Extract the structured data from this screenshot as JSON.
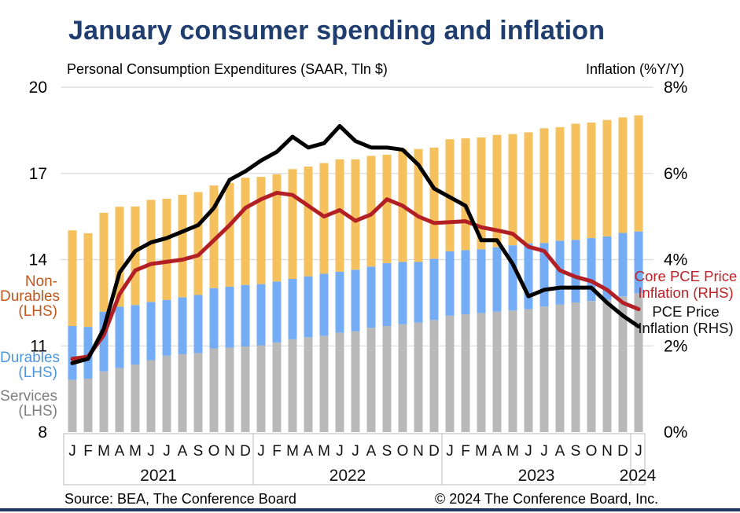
{
  "title": "January consumer spending and inflation",
  "subtitle_left": "Personal Consumption Expenditures (SAAR, Tln $)",
  "subtitle_right": "Inflation (%Y/Y)",
  "side_labels": {
    "non_durables": "Non-\nDurables\n(LHS)",
    "durables": "Durables\n(LHS)",
    "services": "Services\n(LHS)",
    "core_pce": "Core PCE Price\nInflation (RHS)",
    "pce": "PCE Price\nInflation (RHS)"
  },
  "footer": {
    "source": "Source: BEA, The Conference Board",
    "copyright": "© 2024 The Conference Board, Inc."
  },
  "colors": {
    "title": "#1F3D6E",
    "bottom_bar": "#1F3864",
    "grid": "#DBDBDB",
    "axis_box": "#C6C6C6",
    "tick_text": "#111111",
    "services_bar": "#B9B9B9",
    "durables_bar": "#74ADF5",
    "non_durables_bar": "#F5C05E",
    "pce_line": "#000000",
    "core_pce_line": "#B22026"
  },
  "chart_data": {
    "type": "combo (stacked bar + line)",
    "title": "January consumer spending and inflation",
    "left_axis": {
      "label": "Personal Consumption Expenditures (SAAR, Tln $)",
      "ticks": [
        "20",
        "17",
        "14",
        "11",
        "8"
      ],
      "tick_values": [
        20,
        17,
        14,
        11,
        8
      ],
      "range": [
        8,
        20
      ]
    },
    "right_axis": {
      "label": "Inflation (%Y/Y)",
      "ticks": [
        "8%",
        "6%",
        "4%",
        "2%",
        "0%"
      ],
      "tick_values": [
        8,
        6,
        4,
        2,
        0
      ],
      "range": [
        0,
        8
      ]
    },
    "grid": "horizontal gridlines on",
    "legend_position": "labels beside plot (left for bars, right for lines)",
    "months": [
      "J",
      "F",
      "M",
      "A",
      "M",
      "J",
      "J",
      "A",
      "S",
      "O",
      "N",
      "D",
      "J",
      "F",
      "M",
      "A",
      "M",
      "J",
      "J",
      "A",
      "S",
      "O",
      "N",
      "D",
      "J",
      "F",
      "M",
      "A",
      "M",
      "J",
      "J",
      "A",
      "S",
      "O",
      "N",
      "D",
      "J"
    ],
    "years": [
      {
        "label": "2021",
        "count": 12
      },
      {
        "label": "2022",
        "count": 12
      },
      {
        "label": "2023",
        "count": 12
      },
      {
        "label": "2024",
        "count": 1
      }
    ],
    "bar_series": [
      {
        "name": "Services (LHS)",
        "stack_order": 1,
        "color": "#B9B9B9",
        "values": [
          9.82,
          9.86,
          10.11,
          10.23,
          10.35,
          10.5,
          10.66,
          10.71,
          10.75,
          10.91,
          10.94,
          10.98,
          11.02,
          11.12,
          11.23,
          11.3,
          11.35,
          11.46,
          11.51,
          11.63,
          11.69,
          11.75,
          11.81,
          11.9,
          12.05,
          12.1,
          12.14,
          12.19,
          12.23,
          12.28,
          12.37,
          12.44,
          12.51,
          12.56,
          12.6,
          12.72,
          12.83
        ]
      },
      {
        "name": "Durables (LHS)",
        "stack_order": 2,
        "color": "#74ADF5",
        "values": [
          1.87,
          1.8,
          2.08,
          2.13,
          2.07,
          2.03,
          1.94,
          1.98,
          2.02,
          2.1,
          2.12,
          2.14,
          2.13,
          2.12,
          2.1,
          2.12,
          2.16,
          2.12,
          2.14,
          2.13,
          2.19,
          2.17,
          2.11,
          2.13,
          2.24,
          2.23,
          2.22,
          2.24,
          2.27,
          2.29,
          2.21,
          2.22,
          2.18,
          2.19,
          2.21,
          2.21,
          2.15
        ]
      },
      {
        "name": "Non-Durables (LHS)",
        "stack_order": 3,
        "color": "#F5C05E",
        "values": [
          3.33,
          3.26,
          3.44,
          3.48,
          3.43,
          3.55,
          3.52,
          3.57,
          3.58,
          3.57,
          3.61,
          3.73,
          3.73,
          3.73,
          3.82,
          3.82,
          3.85,
          3.91,
          3.84,
          3.85,
          3.77,
          3.93,
          3.93,
          3.87,
          3.9,
          3.89,
          3.89,
          3.91,
          3.87,
          3.86,
          3.99,
          3.95,
          4.04,
          4.02,
          4.05,
          4.02,
          4.04
        ]
      }
    ],
    "line_series": [
      {
        "name": "Core PCE Price Inflation (RHS)",
        "axis": "right",
        "color": "#B22026",
        "values": [
          1.7,
          1.75,
          2.25,
          3.2,
          3.75,
          3.9,
          3.95,
          4.0,
          4.1,
          4.45,
          4.8,
          5.2,
          5.4,
          5.55,
          5.5,
          5.25,
          5.0,
          5.15,
          4.9,
          5.05,
          5.4,
          5.25,
          5.0,
          4.85,
          4.87,
          4.89,
          4.75,
          4.68,
          4.6,
          4.3,
          4.2,
          3.75,
          3.6,
          3.5,
          3.3,
          3.0,
          2.85
        ]
      },
      {
        "name": "PCE Price Inflation (RHS)",
        "axis": "right",
        "color": "#000000",
        "values": [
          1.6,
          1.7,
          2.4,
          3.7,
          4.2,
          4.4,
          4.5,
          4.65,
          4.8,
          5.2,
          5.85,
          6.05,
          6.3,
          6.5,
          6.85,
          6.6,
          6.7,
          7.1,
          6.75,
          6.6,
          6.6,
          6.55,
          6.2,
          5.65,
          5.45,
          5.25,
          4.45,
          4.45,
          3.9,
          3.15,
          3.3,
          3.35,
          3.35,
          3.35,
          3.0,
          2.7,
          2.45
        ]
      }
    ]
  }
}
